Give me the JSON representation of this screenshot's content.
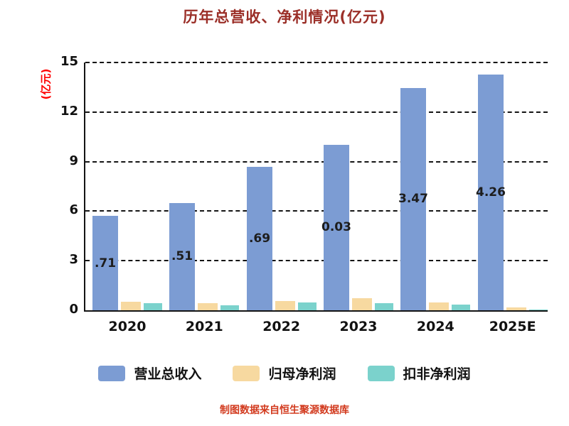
{
  "title": "历年总营收、净利情况(亿元)",
  "y_axis": {
    "label": "(亿元)",
    "ticks": [
      0,
      3,
      6,
      9,
      12,
      15
    ]
  },
  "footer": "制图数据来自恒生聚源数据库",
  "colors": {
    "revenue_bar": "#7c9cd3",
    "net_profit_bar": "#f7d9a0",
    "non_recurring_bar": "#7bd2cc",
    "title_text": "#9b2f28",
    "y_axis_label": "#ff0000",
    "footer_text": "#d23a1e",
    "axis_and_grid": "#141414"
  },
  "chart_data": {
    "type": "bar",
    "title": "历年总营收、净利情况(亿元)",
    "categories": [
      "2020",
      "2021",
      "2022",
      "2023",
      "2024",
      "2025E"
    ],
    "series": [
      {
        "name": "营业总收入",
        "color": "#7c9cd3",
        "values": [
          5.71,
          6.51,
          8.69,
          10.03,
          13.47,
          14.26
        ],
        "visible_labels": [
          ".71",
          ".51",
          ".69",
          "0.03",
          "3.47",
          "4.26"
        ]
      },
      {
        "name": "归母净利润",
        "color": "#f7d9a0",
        "values": [
          0.52,
          0.43,
          0.56,
          0.73,
          0.47,
          0.17
        ]
      },
      {
        "name": "扣非净利润",
        "color": "#7bd2cc",
        "values": [
          0.43,
          0.3,
          0.47,
          0.43,
          0.34,
          0.04
        ]
      }
    ],
    "ylabel": "(亿元)",
    "ylim": [
      0,
      15
    ],
    "yticks": [
      0,
      3,
      6,
      9,
      12,
      15
    ],
    "grid": "horizontal-dashed",
    "legend_position": "bottom"
  }
}
